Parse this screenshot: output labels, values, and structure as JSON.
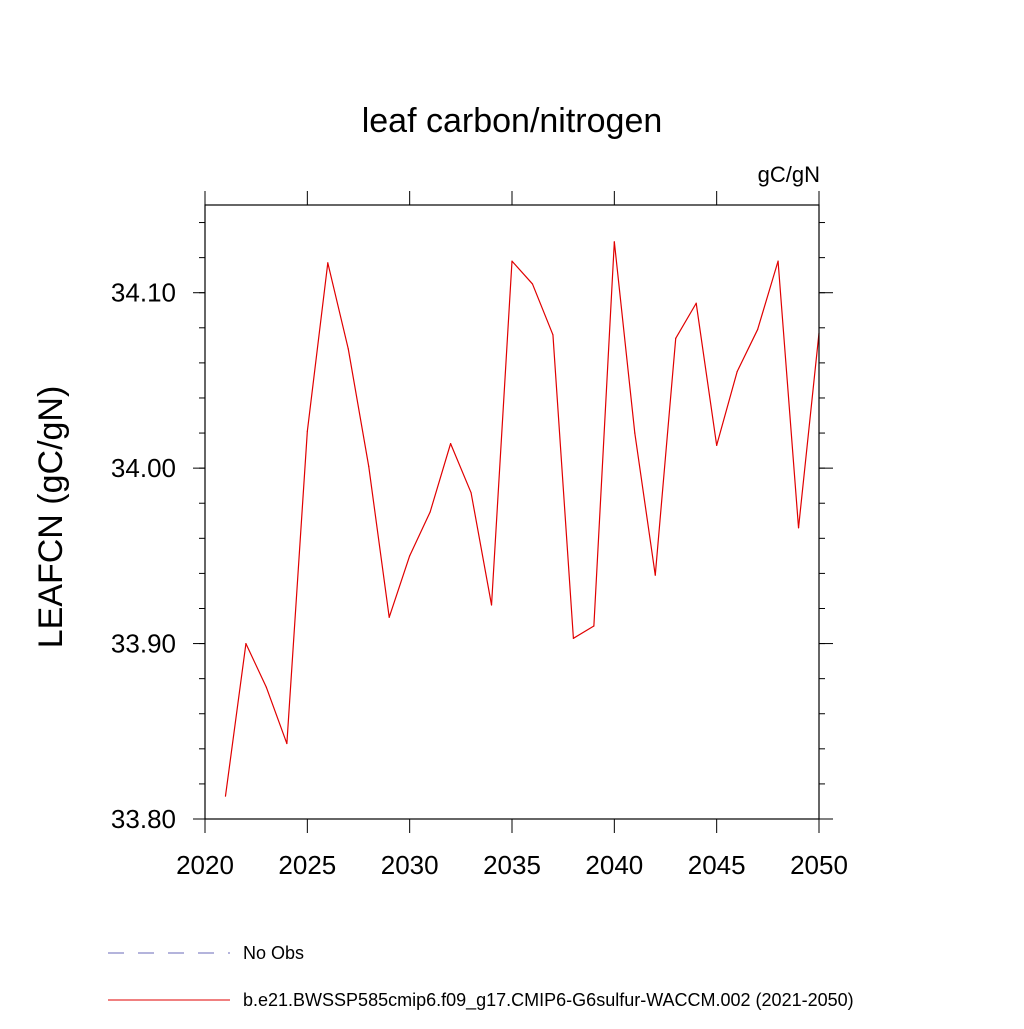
{
  "chart_data": {
    "type": "line",
    "title": "leaf carbon/nitrogen",
    "units_label": "gC/gN",
    "ylabel": "LEAFCN  (gC/gN)",
    "xlabel": "",
    "xlim": [
      2020,
      2050
    ],
    "ylim": [
      33.8,
      34.15
    ],
    "x_ticks": [
      "2020",
      "2025",
      "2030",
      "2035",
      "2040",
      "2045",
      "2050"
    ],
    "y_ticks": [
      "33.80",
      "33.90",
      "34.00",
      "34.10"
    ],
    "grid": false,
    "legend_placement": "bottom-left, below plot",
    "legend": [
      {
        "label": "No Obs",
        "color": "#6a6ab8",
        "dash": "dashed"
      },
      {
        "label": "b.e21.BWSSP585cmip6.f09_g17.CMIP6-G6sulfur-WACCM.002 (2021-2050)",
        "color": "#e00000",
        "dash": "solid"
      }
    ],
    "series": [
      {
        "name": "b.e21.BWSSP585cmip6.f09_g17.CMIP6-G6sulfur-WACCM.002 (2021-2050)",
        "color": "#e00000",
        "x": [
          2021,
          2022,
          2023,
          2024,
          2025,
          2026,
          2027,
          2028,
          2029,
          2030,
          2031,
          2032,
          2033,
          2034,
          2035,
          2036,
          2037,
          2038,
          2039,
          2040,
          2041,
          2042,
          2043,
          2044,
          2045,
          2046,
          2047,
          2048,
          2049,
          2050
        ],
        "y": [
          33.813,
          33.9,
          33.875,
          33.843,
          34.021,
          34.117,
          34.068,
          34.001,
          33.915,
          33.95,
          33.975,
          34.014,
          33.986,
          33.922,
          34.118,
          34.105,
          34.076,
          33.903,
          33.91,
          34.129,
          34.02,
          33.939,
          34.074,
          34.094,
          34.013,
          34.055,
          34.079,
          34.118,
          33.966,
          34.077
        ]
      }
    ]
  }
}
